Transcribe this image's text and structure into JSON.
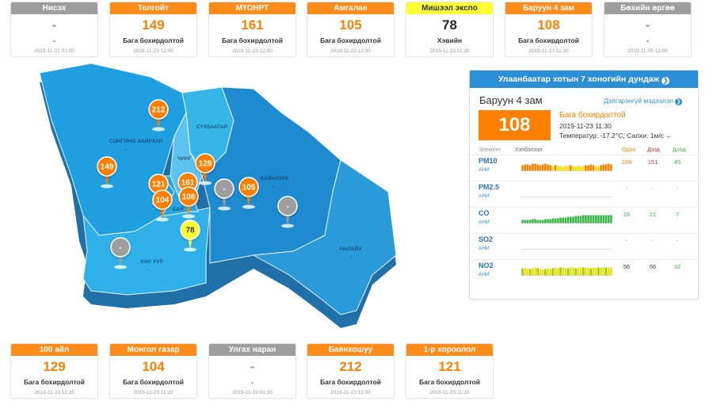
{
  "top_cards": [
    {
      "name": "Нисэх",
      "value": "-",
      "status": "-",
      "time": "2019-11-22 01:00",
      "color": "gray"
    },
    {
      "name": "Толгойт",
      "value": "149",
      "status": "Бага бохирдолтой",
      "time": "2019-11-23 12:00",
      "color": "orange"
    },
    {
      "name": "МҮОНРТ",
      "value": "161",
      "status": "Бага бохирдолтой",
      "time": "2019-11-23 12:00",
      "color": "orange"
    },
    {
      "name": "Амгалан",
      "value": "105",
      "status": "Бага бохирдолтой",
      "time": "2019-11-23 12:00",
      "color": "orange"
    },
    {
      "name": "Мишээл экспо",
      "value": "78",
      "status": "Хэвийн",
      "time": "2019-11-23 11:30",
      "color": "yellow"
    },
    {
      "name": "Баруун 4 зам",
      "value": "108",
      "status": "Бага бохирдолтой",
      "time": "2019-11-23 11:30",
      "color": "orange"
    },
    {
      "name": "Бөхийн өргөө",
      "value": "-",
      "status": "-",
      "time": "2019-11-05 12:00",
      "color": "gray"
    }
  ],
  "bottom_cards": [
    {
      "name": "100 айл",
      "value": "129",
      "status": "Бага бохирдолтой",
      "time": "2019-11-23 11:15",
      "color": "orange"
    },
    {
      "name": "Монгол газар",
      "value": "104",
      "status": "Бага бохирдолтой",
      "time": "2019-11-23 11:15",
      "color": "orange"
    },
    {
      "name": "Улгах наран",
      "value": "-",
      "status": "-",
      "time": "2019-11-19 01:30",
      "color": "gray"
    },
    {
      "name": "Баянхошуу",
      "value": "212",
      "status": "Бага бохирдолтой",
      "time": "2019-11-23 12:00",
      "color": "orange"
    },
    {
      "name": "1-р хороолол",
      "value": "121",
      "status": "Бага бохирдолтой",
      "time": "2019-11-23 11:15",
      "color": "orange"
    }
  ],
  "map": {
    "districts": {
      "songino": "СОНГИНО ХАЙРХАН",
      "sukhbaatar": "СҮХБААТАР",
      "chingeltei": "ЧИНГ",
      "bayanzurkh": "БАЯНЗҮРХ",
      "khan_uul": "ХАН УУЛ",
      "nalaikh": "НАЛАЙХ",
      "bayangol": "БАЯ"
    },
    "pins": [
      "212",
      "149",
      "121",
      "161",
      "129",
      "104",
      "108",
      "-",
      "105",
      "-",
      "78",
      "-"
    ]
  },
  "panel": {
    "header": "Улаанбаатар хотын 7 хоногийн дундаж",
    "station": "Баруун 4 зам",
    "detail_link": "Дэлгэрэнгүй мэдээлэл",
    "aqi": "108",
    "status": "Бага бохирдолтой",
    "time": "2019-11-23 11:30",
    "weather": "Температур: -17.2°C; Салхи: 1м/с",
    "cols": {
      "element": "Элемент",
      "trend": "Хэлбэлзэл",
      "now": "Одоо",
      "max": "Дээд",
      "min": "Доод"
    },
    "pollutants": [
      {
        "name": "PM10",
        "ani": "АНИ",
        "now": "109",
        "max": "151",
        "min": "45"
      },
      {
        "name": "PM2.5",
        "ani": "АНИ",
        "now": "-",
        "max": "-",
        "min": "-"
      },
      {
        "name": "CO",
        "ani": "АНИ",
        "now": "16",
        "max": "21",
        "min": "7"
      },
      {
        "name": "SO2",
        "ani": "АНИ",
        "now": "-",
        "max": "-",
        "min": "-"
      },
      {
        "name": "NO2",
        "ani": "АНИ",
        "now": "56",
        "max": "56",
        "min": "32"
      }
    ]
  },
  "colors": {
    "orange": "#ff7f00",
    "yellow": "#ffff33",
    "gray": "#9e9e9e",
    "blue": "#2b8fd6"
  }
}
